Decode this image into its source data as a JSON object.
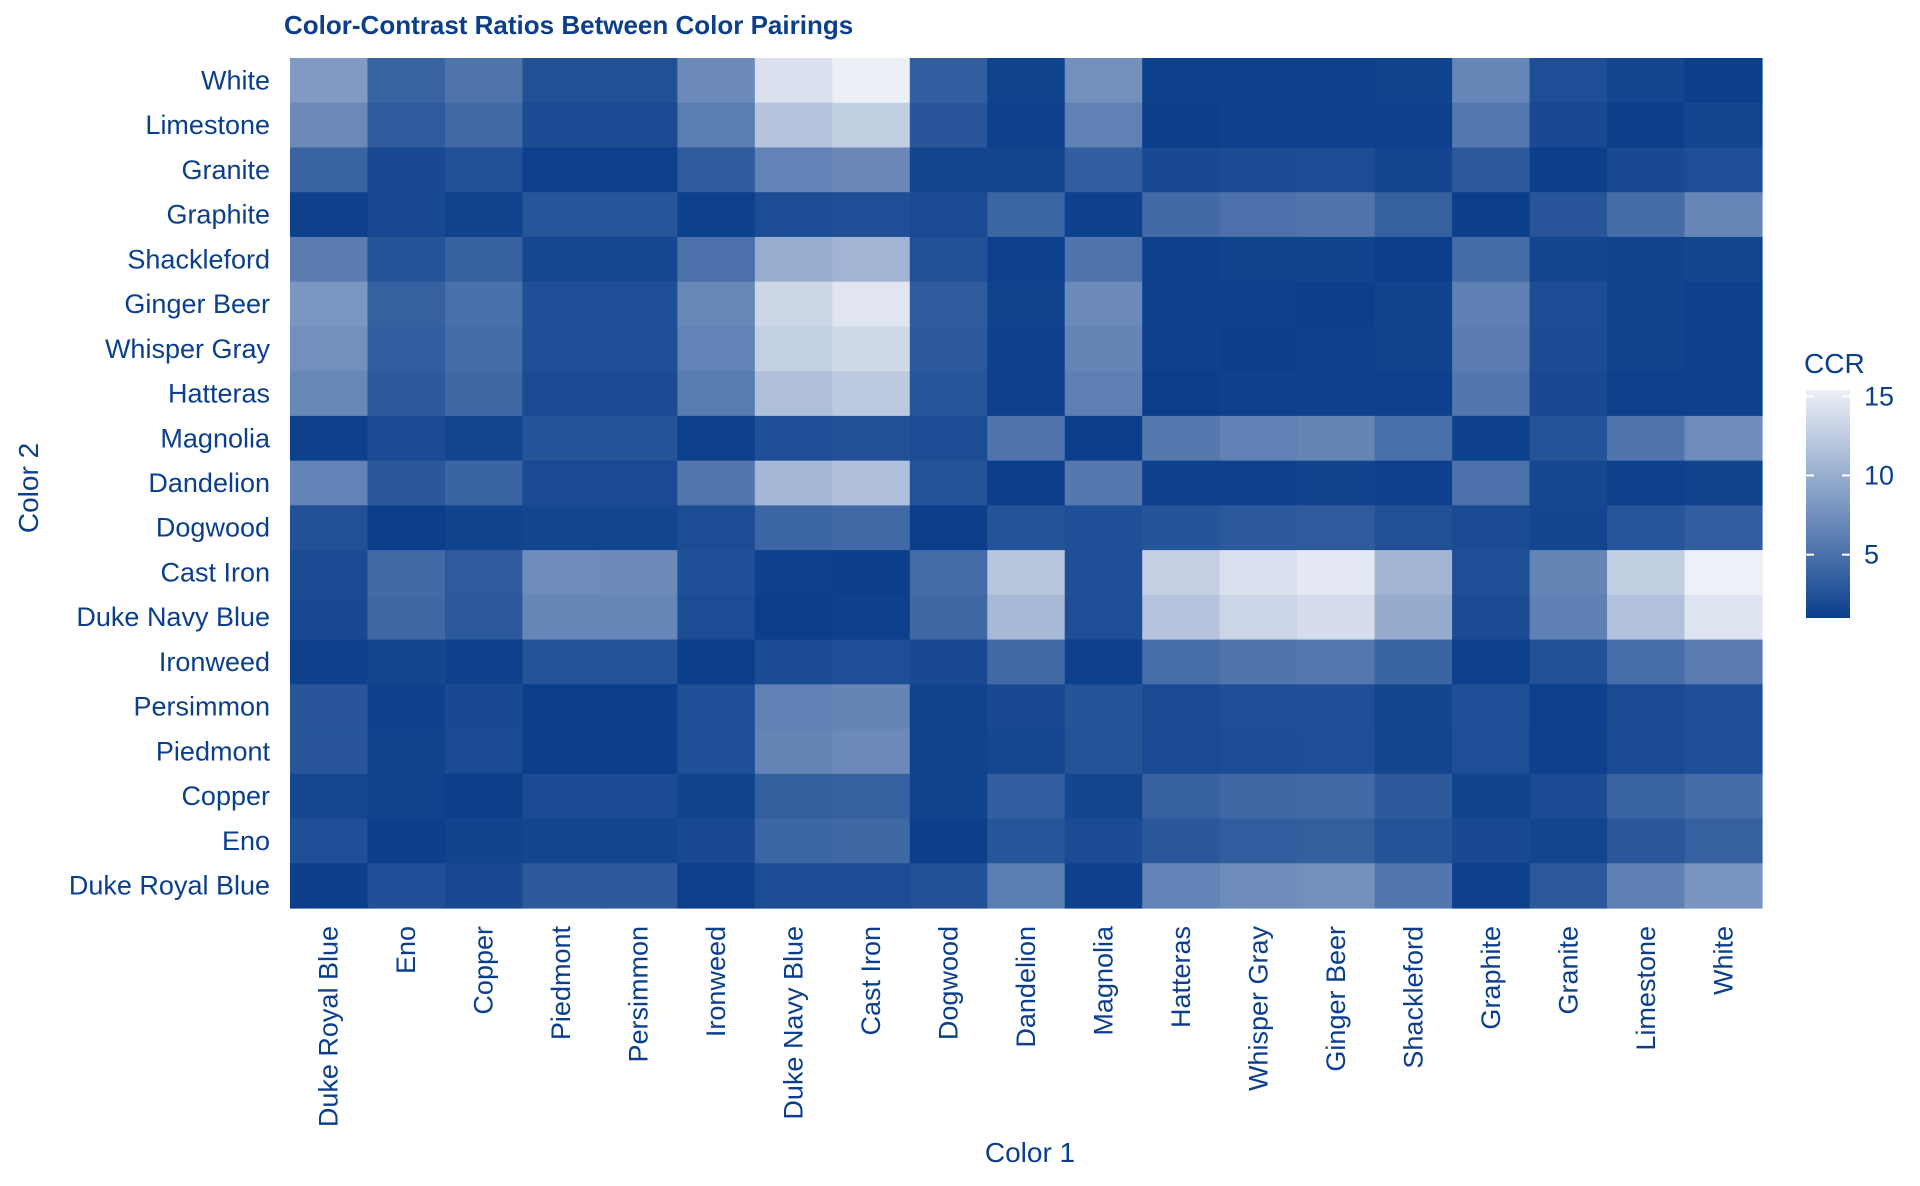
{
  "chart_data": {
    "type": "heatmap",
    "title": "Color-Contrast Ratios Between Color Pairings",
    "xlabel": "Color 1",
    "ylabel": "Color 2",
    "legend_title": "CCR",
    "legend_ticks": [
      "5",
      "10",
      "15"
    ],
    "legend_placement": "right",
    "value_range": [
      1,
      15.4
    ],
    "color_low": "#0b3f8c",
    "color_high": "#eef0f7",
    "grid": true,
    "x_categories": [
      "Duke Royal Blue",
      "Eno",
      "Copper",
      "Piedmont",
      "Persimmon",
      "Ironweed",
      "Duke Navy Blue",
      "Cast Iron",
      "Dogwood",
      "Dandelion",
      "Magnolia",
      "Hatteras",
      "Whisper Gray",
      "Ginger Beer",
      "Shackleford",
      "Graphite",
      "Granite",
      "Limestone",
      "White"
    ],
    "y_categories": [
      "White",
      "Limestone",
      "Granite",
      "Graphite",
      "Shackleford",
      "Ginger Beer",
      "Whisper Gray",
      "Hatteras",
      "Magnolia",
      "Dandelion",
      "Dogwood",
      "Cast Iron",
      "Duke Navy Blue",
      "Ironweed",
      "Persimmon",
      "Piedmont",
      "Copper",
      "Eno",
      "Duke Royal Blue"
    ],
    "values": [
      [
        8.4,
        3.9,
        5.3,
        2.4,
        2.4,
        7.2,
        14.1,
        15.3,
        3.5,
        1.3,
        7.6,
        1.2,
        1.1,
        1.1,
        1.4,
        6.8,
        2.2,
        1.5,
        1.0
      ],
      [
        7.1,
        3.3,
        4.4,
        2.0,
        2.0,
        6.1,
        11.8,
        12.6,
        2.9,
        1.1,
        6.4,
        1.0,
        1.1,
        1.1,
        1.2,
        5.7,
        1.8,
        1.0,
        1.5
      ],
      [
        3.9,
        1.8,
        2.5,
        1.1,
        1.1,
        3.3,
        6.5,
        7.0,
        1.6,
        1.6,
        3.5,
        1.8,
        2.0,
        2.1,
        1.5,
        3.1,
        1.0,
        1.8,
        2.2
      ],
      [
        1.2,
        1.8,
        1.3,
        2.8,
        2.8,
        1.1,
        2.1,
        2.2,
        1.9,
        4.1,
        1.1,
        4.5,
        5.1,
        5.4,
        3.7,
        1.0,
        2.9,
        4.7,
        6.8
      ],
      [
        6.0,
        2.7,
        3.7,
        1.7,
        1.7,
        5.1,
        9.9,
        10.5,
        2.4,
        1.1,
        5.3,
        1.2,
        1.3,
        1.4,
        1.0,
        4.7,
        1.5,
        1.3,
        1.6
      ],
      [
        8.1,
        3.7,
        5.0,
        2.3,
        2.3,
        6.9,
        13.3,
        14.5,
        3.3,
        1.3,
        7.1,
        1.1,
        1.1,
        1.0,
        1.4,
        6.3,
        2.1,
        1.4,
        1.1
      ],
      [
        7.6,
        3.5,
        4.7,
        2.2,
        2.2,
        6.5,
        12.7,
        13.5,
        3.1,
        1.2,
        6.7,
        1.1,
        1.0,
        1.1,
        1.3,
        6.0,
        2.0,
        1.3,
        1.1
      ],
      [
        6.9,
        3.2,
        4.3,
        2.0,
        2.0,
        5.9,
        11.5,
        12.2,
        2.8,
        1.2,
        6.2,
        1.0,
        1.1,
        1.2,
        1.2,
        5.5,
        1.8,
        1.2,
        1.2
      ],
      [
        1.1,
        2.0,
        1.6,
        2.7,
        2.7,
        1.2,
        2.3,
        2.4,
        2.1,
        5.3,
        1.0,
        5.7,
        6.4,
        6.7,
        4.9,
        1.2,
        2.6,
        5.4,
        7.3
      ],
      [
        6.5,
        3.0,
        4.0,
        1.9,
        1.9,
        5.5,
        10.8,
        11.5,
        2.6,
        1.0,
        5.7,
        1.2,
        1.2,
        1.3,
        1.1,
        5.1,
        1.7,
        1.1,
        1.3
      ],
      [
        2.5,
        1.0,
        1.4,
        1.5,
        1.5,
        2.1,
        4.1,
        4.4,
        1.0,
        2.6,
        2.3,
        2.7,
        3.1,
        3.3,
        2.4,
        2.0,
        1.5,
        2.8,
        3.5
      ],
      [
        2.0,
        4.5,
        3.3,
        7.3,
        7.2,
        2.3,
        1.1,
        1.0,
        4.6,
        12.0,
        2.3,
        12.8,
        14.1,
        14.8,
        10.6,
        2.2,
        6.7,
        12.6,
        15.4
      ],
      [
        1.8,
        4.3,
        3.1,
        6.8,
        6.8,
        2.1,
        1.0,
        1.1,
        4.3,
        10.9,
        2.2,
        11.8,
        13.2,
        13.8,
        9.8,
        2.0,
        6.3,
        11.6,
        14.4
      ],
      [
        1.2,
        1.6,
        1.2,
        2.6,
        2.6,
        1.0,
        2.0,
        2.2,
        1.8,
        4.5,
        1.2,
        4.8,
        5.4,
        5.6,
        4.0,
        1.1,
        2.5,
        4.8,
        6.0
      ],
      [
        2.9,
        1.2,
        1.8,
        1.0,
        1.0,
        2.3,
        6.4,
        6.7,
        1.3,
        1.8,
        2.7,
        2.0,
        2.2,
        2.3,
        1.6,
        2.3,
        1.2,
        2.0,
        2.3
      ],
      [
        2.9,
        1.3,
        1.9,
        1.0,
        1.0,
        2.3,
        6.7,
        7.1,
        1.3,
        1.7,
        2.6,
        1.9,
        2.1,
        2.2,
        1.6,
        2.2,
        1.1,
        1.9,
        2.2
      ],
      [
        1.7,
        1.3,
        1.0,
        2.0,
        2.0,
        1.4,
        3.6,
        3.8,
        1.3,
        3.5,
        1.6,
        3.8,
        4.3,
        4.5,
        3.2,
        1.4,
        2.0,
        3.9,
        4.7
      ],
      [
        2.3,
        1.0,
        1.4,
        1.6,
        1.6,
        1.8,
        4.1,
        4.3,
        1.0,
        2.8,
        2.0,
        3.0,
        3.4,
        3.6,
        2.6,
        1.8,
        1.6,
        3.0,
        3.7
      ],
      [
        1.0,
        2.3,
        1.8,
        3.2,
        3.2,
        1.2,
        2.1,
        2.1,
        2.4,
        6.1,
        1.1,
        6.6,
        7.3,
        7.6,
        5.5,
        1.1,
        3.1,
        6.3,
        8.0
      ]
    ]
  }
}
